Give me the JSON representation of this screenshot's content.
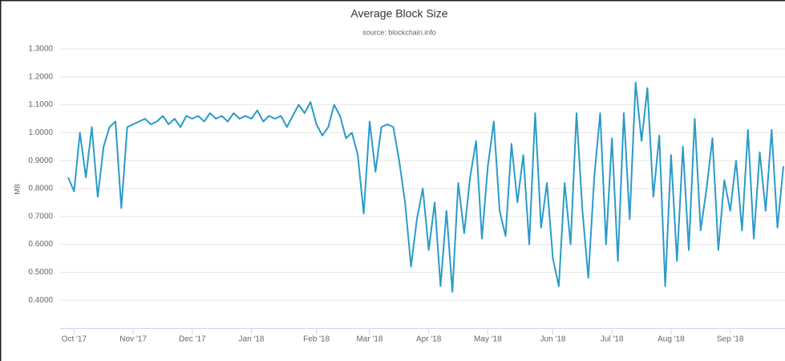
{
  "chart_data": {
    "type": "line",
    "title": "Average Block Size",
    "subtitle": "source: blockchain.info",
    "ylabel": "MB",
    "categories": [
      null,
      "Oct '17",
      null,
      null,
      null,
      null,
      null,
      null,
      null,
      null,
      null,
      "Nov '17",
      null,
      null,
      null,
      null,
      null,
      null,
      null,
      null,
      null,
      "Dec '17",
      null,
      null,
      null,
      null,
      null,
      null,
      null,
      null,
      null,
      "Jan '18",
      null,
      null,
      null,
      null,
      null,
      null,
      null,
      null,
      null,
      null,
      "Feb '18",
      null,
      null,
      null,
      null,
      null,
      null,
      null,
      null,
      "Mar '18",
      null,
      null,
      null,
      null,
      null,
      null,
      null,
      null,
      null,
      "Apr '18",
      null,
      null,
      null,
      null,
      null,
      null,
      null,
      null,
      null,
      "May '18",
      null,
      null,
      null,
      null,
      null,
      null,
      null,
      null,
      null,
      null,
      "Jun '18",
      null,
      null,
      null,
      null,
      null,
      null,
      null,
      null,
      null,
      "Jul '18",
      null,
      null,
      null,
      null,
      null,
      null,
      null,
      null,
      null,
      "Aug '18",
      null,
      null,
      null,
      null,
      null,
      null,
      null,
      null,
      null,
      "Sep '18",
      null,
      null,
      null,
      null,
      null,
      null,
      null,
      null,
      null
    ],
    "values": [
      0.84,
      0.79,
      1.0,
      0.84,
      1.02,
      0.77,
      0.95,
      1.02,
      1.04,
      0.73,
      1.02,
      1.03,
      1.04,
      1.05,
      1.03,
      1.04,
      1.06,
      1.03,
      1.05,
      1.02,
      1.06,
      1.05,
      1.06,
      1.04,
      1.07,
      1.05,
      1.06,
      1.04,
      1.07,
      1.05,
      1.06,
      1.05,
      1.08,
      1.04,
      1.06,
      1.05,
      1.06,
      1.02,
      1.06,
      1.1,
      1.07,
      1.11,
      1.03,
      0.99,
      1.02,
      1.1,
      1.06,
      0.98,
      1.0,
      0.92,
      0.71,
      1.04,
      0.86,
      1.02,
      1.03,
      1.02,
      0.9,
      0.75,
      0.52,
      0.69,
      0.8,
      0.58,
      0.75,
      0.45,
      0.72,
      0.43,
      0.82,
      0.64,
      0.84,
      0.97,
      0.62,
      0.88,
      1.04,
      0.72,
      0.63,
      0.96,
      0.75,
      0.92,
      0.6,
      1.07,
      0.66,
      0.82,
      0.55,
      0.45,
      0.82,
      0.6,
      1.07,
      0.72,
      0.48,
      0.84,
      1.07,
      0.6,
      0.98,
      0.54,
      1.07,
      0.69,
      1.18,
      0.97,
      1.16,
      0.77,
      0.99,
      0.45,
      0.92,
      0.54,
      0.95,
      0.58,
      1.05,
      0.65,
      0.8,
      0.98,
      0.58,
      0.83,
      0.72,
      0.9,
      0.65,
      1.01,
      0.62,
      0.93,
      0.72,
      1.01,
      0.66,
      0.88
    ],
    "color": "#2b9bc8",
    "ylim": [
      0.3,
      1.3
    ],
    "yticks": [
      {
        "value": 0.4,
        "label": "0.4000"
      },
      {
        "value": 0.5,
        "label": "0.5000"
      },
      {
        "value": 0.6,
        "label": "0.6000"
      },
      {
        "value": 0.7,
        "label": "0.7000"
      },
      {
        "value": 0.8,
        "label": "0.8000"
      },
      {
        "value": 0.9,
        "label": "0.9000"
      },
      {
        "value": 1.0,
        "label": "1.0000"
      },
      {
        "value": 1.1,
        "label": "1.1000"
      },
      {
        "value": 1.2,
        "label": "1.2000"
      },
      {
        "value": 1.3,
        "label": "1.3000"
      }
    ],
    "grid": true
  }
}
